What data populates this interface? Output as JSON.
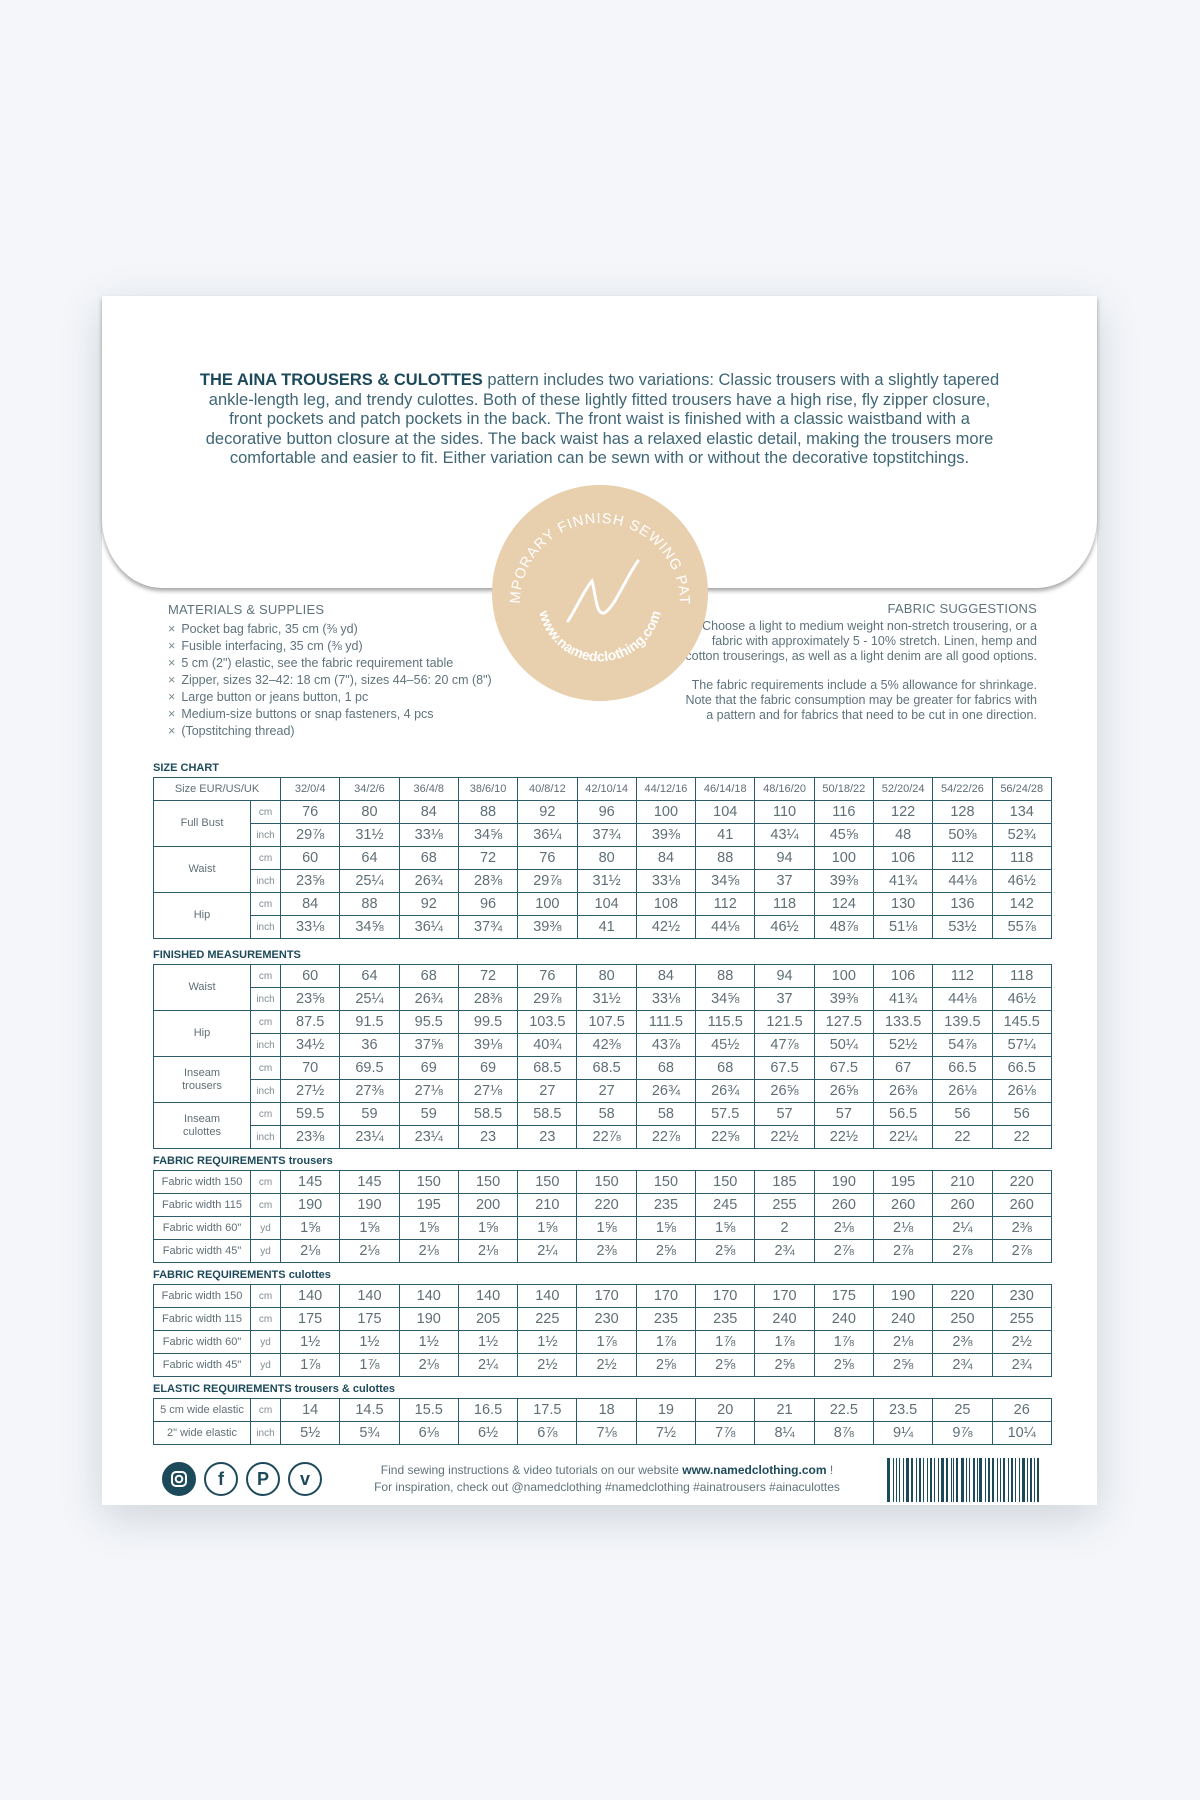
{
  "intro": {
    "title": "THE AINA TROUSERS & CULOTTES",
    "text": " pattern includes two variations: Classic trousers with a slightly tapered ankle-length leg, and trendy culottes. Both of these lightly fitted trousers have a high rise, fly zipper closure, front pockets and patch pockets in the back. The front waist is finished with a classic waistband with a decorative button closure at the sides. The back waist has a relaxed elastic detail, making the trousers more comfortable and easier to fit. Either variation can be sewn with or without the decorative topstitchings."
  },
  "seal": {
    "top_text": "CONTEMPORARY FINNISH SEWING PATTERNS",
    "bottom_text": "www.namedclothing.com",
    "logo": "N",
    "color": "#e8cfad"
  },
  "materials": {
    "title": "MATERIALS & SUPPLIES",
    "bullet": "×",
    "items": [
      "Pocket bag fabric, 35 cm (⅜ yd)",
      "Fusible interfacing, 35 cm (⅜ yd)",
      "5 cm (2\") elastic, see the fabric requirement table",
      "Zipper, sizes 32–42: 18 cm (7\"), sizes 44–56: 20 cm (8\")",
      "Large button or jeans button, 1 pc",
      "Medium-size buttons or snap fasteners, 4 pcs",
      "(Topstitching thread)"
    ]
  },
  "fabric": {
    "title": "FABRIC SUGGESTIONS",
    "p1": "Choose a light to medium weight non-stretch trousering, or a fabric with approximately 5 - 10% stretch. Linen, hemp and cotton trouserings, as well as a light denim are all good options.",
    "p2": "The fabric requirements include a 5% allowance for shrinkage. Note that the fabric consumption may be greater for fabrics with a pattern and for fabrics that need to be cut in one direction."
  },
  "size_chart": {
    "title": "SIZE CHART",
    "header_label": "Size EUR/US/UK",
    "sizes": [
      "32/0/4",
      "34/2/6",
      "36/4/8",
      "38/6/10",
      "40/8/12",
      "42/10/14",
      "44/12/16",
      "46/14/18",
      "48/16/20",
      "50/18/22",
      "52/20/24",
      "54/22/26",
      "56/24/28"
    ],
    "groups": [
      {
        "label": "Full Bust",
        "rows": [
          {
            "unit": "cm",
            "values": [
              "76",
              "80",
              "84",
              "88",
              "92",
              "96",
              "100",
              "104",
              "110",
              "116",
              "122",
              "128",
              "134"
            ]
          },
          {
            "unit": "inch",
            "values": [
              "29⅞",
              "31½",
              "33⅛",
              "34⅝",
              "36¼",
              "37¾",
              "39⅜",
              "41",
              "43¼",
              "45⅝",
              "48",
              "50⅜",
              "52¾"
            ]
          }
        ]
      },
      {
        "label": "Waist",
        "rows": [
          {
            "unit": "cm",
            "values": [
              "60",
              "64",
              "68",
              "72",
              "76",
              "80",
              "84",
              "88",
              "94",
              "100",
              "106",
              "112",
              "118"
            ]
          },
          {
            "unit": "inch",
            "values": [
              "23⅝",
              "25¼",
              "26¾",
              "28⅜",
              "29⅞",
              "31½",
              "33⅛",
              "34⅝",
              "37",
              "39⅜",
              "41¾",
              "44⅛",
              "46½"
            ]
          }
        ]
      },
      {
        "label": "Hip",
        "rows": [
          {
            "unit": "cm",
            "values": [
              "84",
              "88",
              "92",
              "96",
              "100",
              "104",
              "108",
              "112",
              "118",
              "124",
              "130",
              "136",
              "142"
            ]
          },
          {
            "unit": "inch",
            "values": [
              "33⅛",
              "34⅝",
              "36¼",
              "37¾",
              "39⅜",
              "41",
              "42½",
              "44⅛",
              "46½",
              "48⅞",
              "51⅛",
              "53½",
              "55⅞"
            ]
          }
        ]
      }
    ]
  },
  "finished": {
    "title": "FINISHED MEASUREMENTS",
    "groups": [
      {
        "label": "Waist",
        "rows": [
          {
            "unit": "cm",
            "values": [
              "60",
              "64",
              "68",
              "72",
              "76",
              "80",
              "84",
              "88",
              "94",
              "100",
              "106",
              "112",
              "118"
            ]
          },
          {
            "unit": "inch",
            "values": [
              "23⅝",
              "25¼",
              "26¾",
              "28⅜",
              "29⅞",
              "31½",
              "33⅛",
              "34⅝",
              "37",
              "39⅜",
              "41¾",
              "44⅛",
              "46½"
            ]
          }
        ]
      },
      {
        "label": "Hip",
        "rows": [
          {
            "unit": "cm",
            "values": [
              "87.5",
              "91.5",
              "95.5",
              "99.5",
              "103.5",
              "107.5",
              "111.5",
              "115.5",
              "121.5",
              "127.5",
              "133.5",
              "139.5",
              "145.5"
            ]
          },
          {
            "unit": "inch",
            "values": [
              "34½",
              "36",
              "37⅝",
              "39⅛",
              "40¾",
              "42⅜",
              "43⅞",
              "45½",
              "47⅞",
              "50¼",
              "52½",
              "54⅞",
              "57¼"
            ]
          }
        ]
      },
      {
        "label": "Inseam trousers",
        "rows": [
          {
            "unit": "cm",
            "values": [
              "70",
              "69.5",
              "69",
              "69",
              "68.5",
              "68.5",
              "68",
              "68",
              "67.5",
              "67.5",
              "67",
              "66.5",
              "66.5"
            ]
          },
          {
            "unit": "inch",
            "values": [
              "27½",
              "27⅜",
              "27⅛",
              "27⅛",
              "27",
              "27",
              "26¾",
              "26¾",
              "26⅝",
              "26⅝",
              "26⅜",
              "26⅛",
              "26⅛"
            ]
          }
        ]
      },
      {
        "label": "Inseam culottes",
        "rows": [
          {
            "unit": "cm",
            "values": [
              "59.5",
              "59",
              "59",
              "58.5",
              "58.5",
              "58",
              "58",
              "57.5",
              "57",
              "57",
              "56.5",
              "56",
              "56"
            ]
          },
          {
            "unit": "inch",
            "values": [
              "23⅜",
              "23¼",
              "23¼",
              "23",
              "23",
              "22⅞",
              "22⅞",
              "22⅝",
              "22½",
              "22½",
              "22¼",
              "22",
              "22"
            ]
          }
        ]
      }
    ]
  },
  "fabric_trousers": {
    "title": "FABRIC REQUIREMENTS",
    "subtitle": "trousers",
    "rows": [
      {
        "label": "Fabric width 150",
        "unit": "cm",
        "values": [
          "145",
          "145",
          "150",
          "150",
          "150",
          "150",
          "150",
          "150",
          "185",
          "190",
          "195",
          "210",
          "220"
        ]
      },
      {
        "label": "Fabric width 115",
        "unit": "cm",
        "values": [
          "190",
          "190",
          "195",
          "200",
          "210",
          "220",
          "235",
          "245",
          "255",
          "260",
          "260",
          "260",
          "260"
        ]
      },
      {
        "label": "Fabric width 60\"",
        "unit": "yd",
        "values": [
          "1⅝",
          "1⅝",
          "1⅝",
          "1⅝",
          "1⅝",
          "1⅝",
          "1⅝",
          "1⅝",
          "2",
          "2⅛",
          "2⅛",
          "2¼",
          "2⅜"
        ]
      },
      {
        "label": "Fabric width 45\"",
        "unit": "yd",
        "values": [
          "2⅛",
          "2⅛",
          "2⅛",
          "2⅛",
          "2¼",
          "2⅜",
          "2⅝",
          "2⅝",
          "2¾",
          "2⅞",
          "2⅞",
          "2⅞",
          "2⅞"
        ]
      }
    ]
  },
  "fabric_culottes": {
    "title": "FABRIC REQUIREMENTS",
    "subtitle": "culottes",
    "rows": [
      {
        "label": "Fabric width 150",
        "unit": "cm",
        "values": [
          "140",
          "140",
          "140",
          "140",
          "140",
          "170",
          "170",
          "170",
          "170",
          "175",
          "190",
          "220",
          "230"
        ]
      },
      {
        "label": "Fabric width 115",
        "unit": "cm",
        "values": [
          "175",
          "175",
          "190",
          "205",
          "225",
          "230",
          "235",
          "235",
          "240",
          "240",
          "240",
          "250",
          "255"
        ]
      },
      {
        "label": "Fabric width 60\"",
        "unit": "yd",
        "values": [
          "1½",
          "1½",
          "1½",
          "1½",
          "1½",
          "1⅞",
          "1⅞",
          "1⅞",
          "1⅞",
          "1⅞",
          "2⅛",
          "2⅜",
          "2½"
        ]
      },
      {
        "label": "Fabric width 45\"",
        "unit": "yd",
        "values": [
          "1⅞",
          "1⅞",
          "2⅛",
          "2¼",
          "2½",
          "2½",
          "2⅝",
          "2⅝",
          "2⅝",
          "2⅝",
          "2⅝",
          "2¾",
          "2¾"
        ]
      }
    ]
  },
  "elastic": {
    "title": "ELASTIC REQUIREMENTS",
    "subtitle": "trousers & culottes",
    "rows": [
      {
        "label": "5 cm wide elastic",
        "unit": "cm",
        "values": [
          "14",
          "14.5",
          "15.5",
          "16.5",
          "17.5",
          "18",
          "19",
          "20",
          "21",
          "22.5",
          "23.5",
          "25",
          "26"
        ]
      },
      {
        "label": "2\" wide elastic",
        "unit": "inch",
        "values": [
          "5½",
          "5¾",
          "6⅛",
          "6½",
          "6⅞",
          "7⅛",
          "7½",
          "7⅞",
          "8¼",
          "8⅞",
          "9¼",
          "9⅞",
          "10¼"
        ]
      }
    ]
  },
  "footer": {
    "icons": [
      "instagram-icon",
      "facebook-icon",
      "pinterest-icon",
      "vimeo-icon"
    ],
    "line1": "Find sewing instructions & video tutorials on our website ",
    "website": "www.namedclothing.com",
    "line1_end": " !",
    "line2": "For inspiration, check out @namedclothing #namedclothing #ainatrousers #ainaculottes"
  },
  "colors": {
    "accent": "#1d4a5b",
    "border": "#2c5c6c",
    "background": "#f4f6fa"
  }
}
